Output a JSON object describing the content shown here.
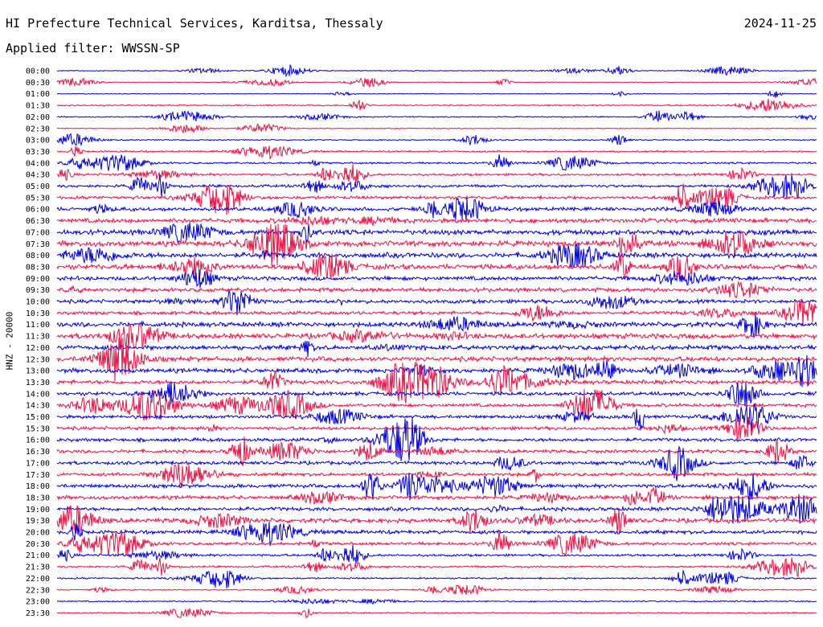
{
  "header": {
    "title": "HI Prefecture Technical Services, Karditsa, Thessaly",
    "date": "2024-11-25",
    "filter": "Applied filter: WWSSN-SP",
    "channel": "HNZ - 20000"
  },
  "colors": {
    "trace_a": "#0000e0",
    "trace_b": "#ee1144"
  },
  "chart_data": {
    "type": "line",
    "title": "HI Prefecture Technical Services, Karditsa, Thessaly",
    "ylabel": "HNZ - 20000",
    "rows": [
      "00:00",
      "00:30",
      "01:00",
      "01:30",
      "02:00",
      "02:30",
      "03:00",
      "03:30",
      "04:00",
      "04:30",
      "05:00",
      "05:30",
      "06:00",
      "06:30",
      "07:00",
      "07:30",
      "08:00",
      "08:30",
      "09:00",
      "09:30",
      "10:00",
      "10:30",
      "11:00",
      "11:30",
      "12:00",
      "12:30",
      "13:00",
      "13:30",
      "14:00",
      "14:30",
      "15:00",
      "15:30",
      "16:00",
      "16:30",
      "17:00",
      "17:30",
      "18:00",
      "18:30",
      "19:00",
      "19:30",
      "20:00",
      "20:30",
      "21:00",
      "21:30",
      "22:00",
      "22:30",
      "23:00",
      "23:30"
    ],
    "row_noise_level": [
      0.5,
      0.4,
      0.4,
      0.8,
      0.7,
      0.5,
      0.7,
      1.0,
      1.1,
      1.4,
      1.6,
      1.9,
      2.2,
      2.6,
      3.0,
      3.2,
      3.0,
      3.0,
      2.4,
      2.4,
      2.2,
      2.0,
      2.8,
      3.0,
      2.8,
      2.8,
      2.6,
      2.4,
      2.2,
      2.0,
      2.0,
      2.0,
      2.0,
      2.0,
      2.0,
      2.0,
      2.2,
      2.2,
      2.2,
      2.6,
      2.2,
      1.8,
      1.4,
      1.2,
      1.0,
      0.7,
      0.8,
      0.8
    ],
    "colors_alternate": [
      "blue",
      "red"
    ]
  }
}
